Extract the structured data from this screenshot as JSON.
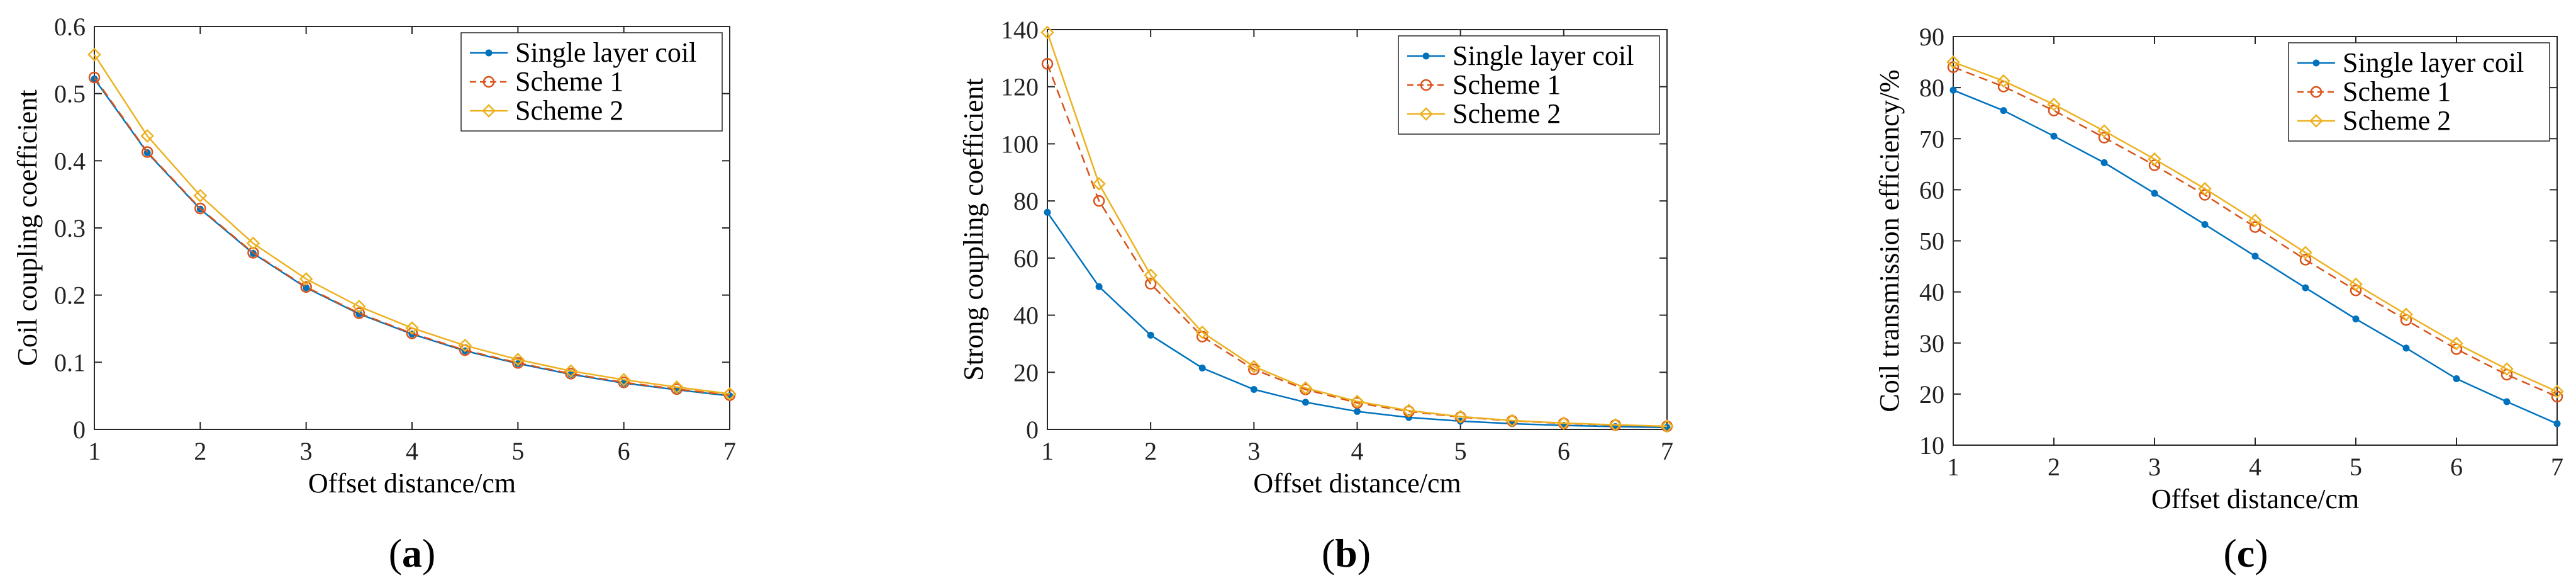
{
  "chart_data": [
    {
      "type": "line",
      "panel_label": "a",
      "xlabel": "Offset distance/cm",
      "ylabel": "Coil coupling coefficient",
      "xlim": [
        1,
        7
      ],
      "ylim": [
        0,
        0.6
      ],
      "xticks": [
        1,
        2,
        3,
        4,
        5,
        6,
        7
      ],
      "yticks": [
        0,
        0.1,
        0.2,
        0.3,
        0.4,
        0.5,
        0.6
      ],
      "ytick_labels": [
        "0",
        "0.1",
        "0.2",
        "0.3",
        "0.4",
        "0.5",
        "0.6"
      ],
      "legend_position": "top-right",
      "x": [
        1,
        1.5,
        2,
        2.5,
        3,
        3.5,
        4,
        4.5,
        5,
        5.5,
        6,
        6.5,
        7
      ],
      "series": [
        {
          "name": "Single layer coil",
          "color": "#0072BD",
          "marker": "dot",
          "dash": "solid",
          "values": [
            0.522,
            0.412,
            0.328,
            0.262,
            0.211,
            0.172,
            0.142,
            0.117,
            0.098,
            0.082,
            0.069,
            0.059,
            0.05
          ]
        },
        {
          "name": "Scheme 1",
          "color": "#D95319",
          "marker": "circle",
          "dash": "dashed",
          "values": [
            0.524,
            0.413,
            0.329,
            0.263,
            0.212,
            0.173,
            0.143,
            0.118,
            0.099,
            0.083,
            0.07,
            0.06,
            0.051
          ]
        },
        {
          "name": "Scheme 2",
          "color": "#EDB120",
          "marker": "diamond",
          "dash": "solid",
          "values": [
            0.558,
            0.437,
            0.348,
            0.277,
            0.224,
            0.183,
            0.151,
            0.125,
            0.104,
            0.087,
            0.074,
            0.063,
            0.053
          ]
        }
      ]
    },
    {
      "type": "line",
      "panel_label": "b",
      "xlabel": "Offset distance/cm",
      "ylabel": "Strong coupling coefficient",
      "xlim": [
        1,
        7
      ],
      "ylim": [
        0,
        140
      ],
      "xticks": [
        1,
        2,
        3,
        4,
        5,
        6,
        7
      ],
      "yticks": [
        0,
        20,
        40,
        60,
        80,
        100,
        120,
        140
      ],
      "ytick_labels": [
        "0",
        "20",
        "40",
        "60",
        "80",
        "100",
        "120",
        "140"
      ],
      "legend_position": "top-right",
      "x": [
        1,
        1.5,
        2,
        2.5,
        3,
        3.5,
        4,
        4.5,
        5,
        5.5,
        6,
        6.5,
        7
      ],
      "series": [
        {
          "name": "Single layer coil",
          "color": "#0072BD",
          "marker": "dot",
          "dash": "solid",
          "values": [
            76,
            50,
            33,
            21.5,
            14,
            9.5,
            6.3,
            4.2,
            2.9,
            2.0,
            1.4,
            1.0,
            0.7
          ]
        },
        {
          "name": "Scheme 1",
          "color": "#D95319",
          "marker": "circle",
          "dash": "dashed",
          "values": [
            128,
            80,
            51,
            32.5,
            21,
            14,
            9.3,
            6.3,
            4.3,
            3.0,
            2.1,
            1.5,
            1.1
          ]
        },
        {
          "name": "Scheme 2",
          "color": "#EDB120",
          "marker": "diamond",
          "dash": "solid",
          "values": [
            139,
            86,
            54,
            34,
            22,
            14.5,
            9.8,
            6.6,
            4.5,
            3.1,
            2.2,
            1.6,
            1.1
          ]
        }
      ]
    },
    {
      "type": "line",
      "panel_label": "c",
      "xlabel": "Offset distance/cm",
      "ylabel": "Coil transmission efficiency/%",
      "xlim": [
        1,
        7
      ],
      "ylim": [
        10,
        90
      ],
      "xticks": [
        1,
        2,
        3,
        4,
        5,
        6,
        7
      ],
      "yticks": [
        10,
        20,
        30,
        40,
        50,
        60,
        70,
        80,
        90
      ],
      "ytick_labels": [
        "10",
        "20",
        "30",
        "40",
        "50",
        "60",
        "70",
        "80",
        "90"
      ],
      "legend_position": "top-right",
      "x": [
        1,
        1.5,
        2,
        2.5,
        3,
        3.5,
        4,
        4.5,
        5,
        5.5,
        6,
        6.5,
        7
      ],
      "series": [
        {
          "name": "Single layer coil",
          "color": "#0072BD",
          "marker": "dot",
          "dash": "solid",
          "values": [
            79.5,
            75.5,
            70.5,
            65.3,
            59.3,
            53.2,
            47,
            40.8,
            34.7,
            29,
            23,
            18.5,
            14.2
          ]
        },
        {
          "name": "Scheme 1",
          "color": "#D95319",
          "marker": "circle",
          "dash": "dashed",
          "values": [
            84,
            80.2,
            75.5,
            70.2,
            64.8,
            59,
            52.7,
            46.3,
            40.3,
            34.5,
            28.8,
            23.8,
            19.5
          ]
        },
        {
          "name": "Scheme 2",
          "color": "#EDB120",
          "marker": "diamond",
          "dash": "solid",
          "values": [
            85,
            81.3,
            76.7,
            71.5,
            66,
            60.2,
            54,
            47.7,
            41.5,
            35.6,
            29.9,
            24.9,
            20.5
          ]
        }
      ]
    }
  ]
}
